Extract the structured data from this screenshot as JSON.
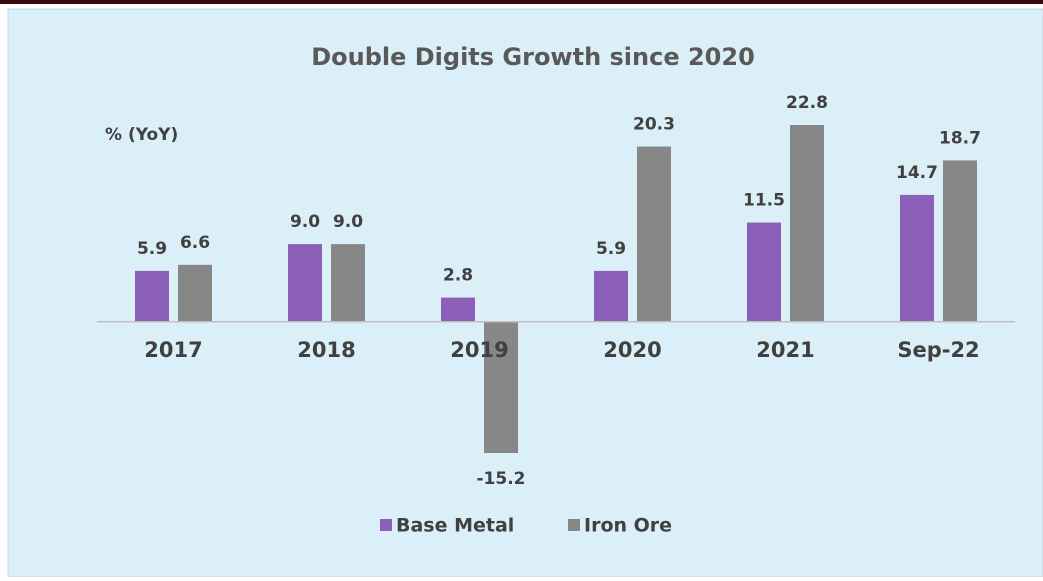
{
  "chart_data": {
    "type": "bar",
    "title": "Double Digits Growth since 2020",
    "y_label": "% (YoY)",
    "categories": [
      "2017",
      "2018",
      "2019",
      "2020",
      "2021",
      "Sep-22"
    ],
    "series": [
      {
        "name": "Base Metal",
        "color": "#8c5fb8",
        "values": [
          5.9,
          9.0,
          2.8,
          5.9,
          11.5,
          14.7
        ],
        "value_labels": [
          "5.9",
          "9.0",
          "2.8",
          "5.9",
          "11.5",
          "14.7"
        ]
      },
      {
        "name": "Iron Ore",
        "color": "#878787",
        "values": [
          6.6,
          9.0,
          -15.2,
          20.3,
          22.8,
          18.7
        ],
        "value_labels": [
          "6.6",
          "9.0",
          "-15.2",
          "20.3",
          "22.8",
          "18.7"
        ]
      }
    ],
    "legend": "bottom"
  }
}
